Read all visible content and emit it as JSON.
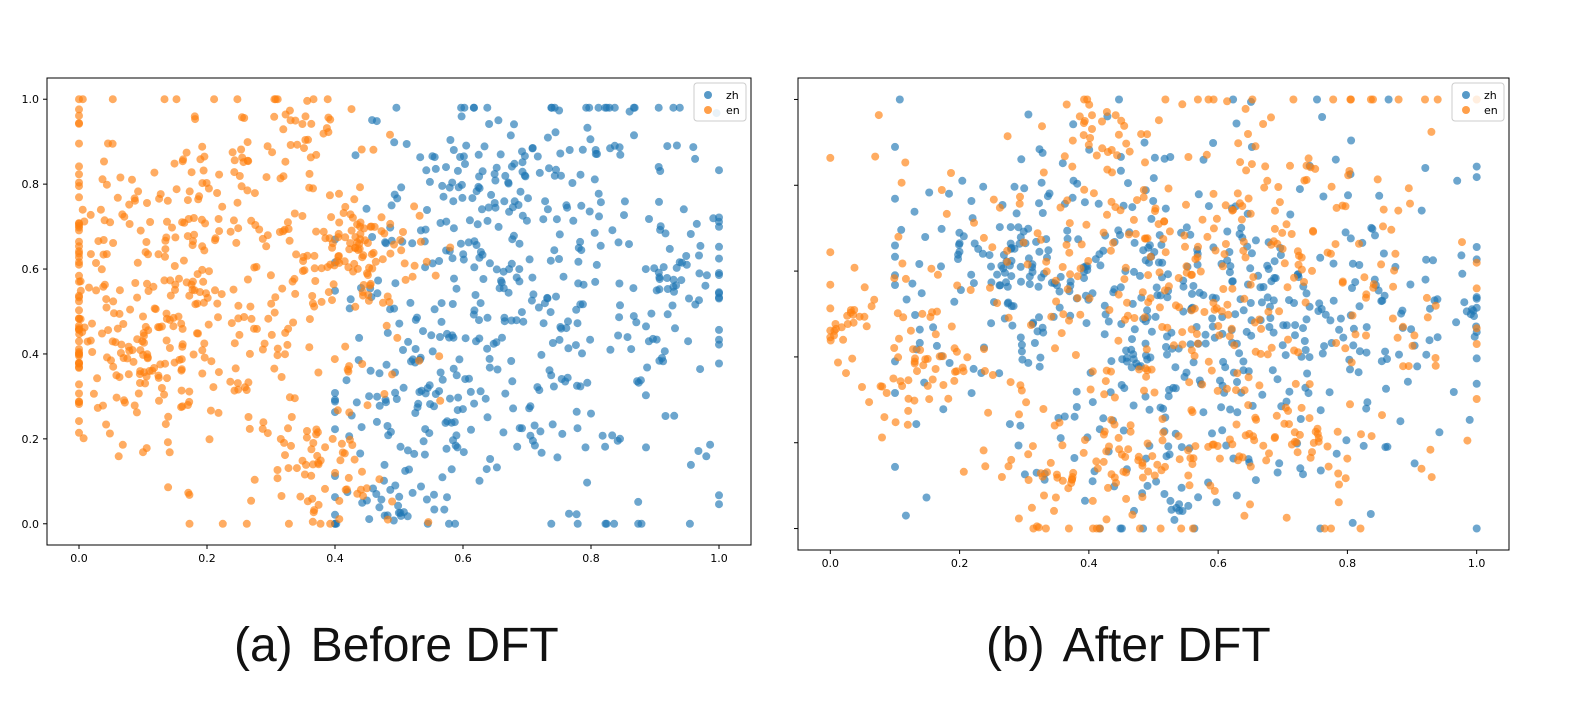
{
  "chart_data": [
    {
      "type": "scatter",
      "caption_tag": "(a)",
      "caption_title": "Before DFT",
      "xlim": [
        -0.05,
        1.05
      ],
      "ylim": [
        -0.05,
        1.05
      ],
      "xticks": [
        "0.0",
        "0.2",
        "0.4",
        "0.6",
        "0.8",
        "1.0"
      ],
      "yticks": [
        "0.0",
        "0.2",
        "0.4",
        "0.6",
        "0.8",
        "1.0"
      ],
      "legend_position": "top-right",
      "series": [
        {
          "name": "zh",
          "color": "#1f77b4",
          "clusters": [
            [
              0.73,
              0.55,
              0.17,
              0.26,
              360
            ],
            [
              0.55,
              0.3,
              0.08,
              0.14,
              100
            ],
            [
              0.62,
              0.8,
              0.08,
              0.08,
              60
            ],
            [
              0.95,
              0.6,
              0.04,
              0.08,
              25
            ],
            [
              0.47,
              0.05,
              0.04,
              0.04,
              20
            ]
          ],
          "bounds": [
            0.4,
            1.0,
            0.0,
            0.98
          ]
        },
        {
          "name": "en",
          "color": "#ff7f0e",
          "clusters": [
            [
              0.22,
              0.6,
              0.16,
              0.22,
              420
            ],
            [
              0.1,
              0.38,
              0.08,
              0.08,
              80
            ],
            [
              0.44,
              0.64,
              0.04,
              0.05,
              60
            ],
            [
              0.4,
              0.08,
              0.06,
              0.05,
              40
            ],
            [
              0.35,
              0.95,
              0.04,
              0.03,
              15
            ],
            [
              0.36,
              0.2,
              0.04,
              0.04,
              20
            ]
          ],
          "bounds": [
            0.0,
            0.58,
            0.0,
            1.0
          ]
        }
      ]
    },
    {
      "type": "scatter",
      "caption_tag": "(b)",
      "caption_title": "After DFT",
      "xlim": [
        -0.05,
        1.05
      ],
      "ylim": [
        -0.05,
        1.05
      ],
      "xticks": [
        "0.0",
        "0.2",
        "0.4",
        "0.6",
        "0.8",
        "1.0"
      ],
      "yticks": [
        "0.0",
        "0.2",
        "0.4",
        "0.6",
        "0.8",
        "1.0"
      ],
      "legend_position": "top-right",
      "series": [
        {
          "name": "zh",
          "color": "#1f77b4",
          "clusters": [
            [
              0.55,
              0.5,
              0.22,
              0.22,
              520
            ],
            [
              0.3,
              0.6,
              0.06,
              0.08,
              60
            ],
            [
              0.98,
              0.5,
              0.02,
              0.04,
              10
            ],
            [
              0.55,
              0.05,
              0.02,
              0.03,
              10
            ]
          ],
          "bounds": [
            0.1,
            1.0,
            0.0,
            1.0
          ]
        },
        {
          "name": "en",
          "color": "#ff7f0e",
          "clusters": [
            [
              0.55,
              0.55,
              0.22,
              0.25,
              420
            ],
            [
              0.12,
              0.38,
              0.06,
              0.1,
              60
            ],
            [
              0.42,
              0.12,
              0.08,
              0.06,
              60
            ],
            [
              0.7,
              0.2,
              0.08,
              0.04,
              40
            ],
            [
              0.42,
              0.92,
              0.04,
              0.04,
              25
            ],
            [
              0.02,
              0.48,
              0.03,
              0.02,
              15
            ]
          ],
          "bounds": [
            0.0,
            1.0,
            0.0,
            1.0
          ]
        }
      ]
    }
  ]
}
